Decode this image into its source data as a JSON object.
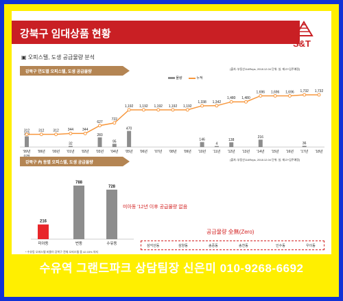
{
  "header": {
    "title": "강북구 임대상품 현황",
    "logo_text": "S&T"
  },
  "subtitle": "▣ 오피스텔, 도생 공급물량 분석",
  "section1": {
    "title": "강북구 연도별 오피스텔, 도생 공급물량",
    "source": "(출처: 부동산114Reps, 2018.12.04 단위: 실, 재고+입주예정)"
  },
  "legend": {
    "bar": "물량",
    "line": "누적"
  },
  "section2": {
    "title": "강북구 內 동별 오피스텔, 도생 공급물량",
    "source": "(출처: 부동산114Reps, 2018.12.04 단위: 실, 재고+입주예정)"
  },
  "annotations": {
    "miadong": "미아동 '12년 이후 공급물량 없음",
    "zero": "공급물량 全無(Zero)",
    "footnote": "* 수유동 오피스텔 비율이 강북구 전체 오피스텔 중 42.03% 차지"
  },
  "zero_dongs": [
    "삼각산동",
    "삼양동",
    "송중동",
    "송천동",
    "인수동",
    "우이동"
  ],
  "colors": {
    "brand_red": "#c91f24",
    "bar_gray": "#8d8d8d",
    "line_orange": "#f7963b",
    "miadong_bar": "#e8262a",
    "banner_bg": "#1133d6",
    "frame_yellow": "#ffef00"
  },
  "banner": "수유역 그랜드파크 상담팀장 신은미 010-9268-6692",
  "chart_data": [
    {
      "type": "bar",
      "title": "강북구 연도별 오피스텔, 도생 공급물량",
      "categories": [
        "'99년 이전",
        "'99년",
        "'00년",
        "'01년",
        "'02년",
        "'03년",
        "'04년",
        "'05년",
        "'06년",
        "'07년",
        "'08년",
        "'09년",
        "'10년",
        "'11년",
        "'12년",
        "'13년",
        "'14년",
        "'15년",
        "'16년",
        "'17년",
        "'18년"
      ],
      "series": [
        {
          "name": "물량",
          "type": "bar",
          "values": [
            312,
            0,
            0,
            32,
            0,
            283,
            95,
            470,
            0,
            0,
            0,
            0,
            146,
            4,
            138,
            0,
            216,
            0,
            0,
            36,
            0
          ]
        },
        {
          "name": "누적",
          "type": "line",
          "values": [
            312,
            312,
            312,
            344,
            344,
            627,
            722,
            1192,
            1192,
            1192,
            1192,
            1192,
            1338,
            1342,
            1480,
            1480,
            1696,
            1696,
            1696,
            1732,
            1732
          ]
        }
      ],
      "bar_labels": [
        "312",
        "",
        "",
        "32",
        "",
        "283",
        "95",
        "470",
        "",
        "",
        "",
        "",
        "146",
        "4",
        "138",
        "",
        "216",
        "",
        "",
        "36",
        ""
      ],
      "line_labels": [
        "312",
        "312",
        "312",
        "344",
        "344",
        "627",
        "722",
        "1,192",
        "1,192",
        "1,192",
        "1,192",
        "1,192",
        "1,338",
        "1,342",
        "1,480",
        "1,480",
        "1,696",
        "1,696",
        "1,696",
        "1,732",
        "1,732"
      ]
    },
    {
      "type": "bar",
      "title": "강북구 內 동별 오피스텔, 도생 공급물량",
      "categories": [
        "미아동",
        "번동",
        "수유동"
      ],
      "values": [
        216,
        788,
        728
      ],
      "labels": [
        "216",
        "788",
        "728"
      ]
    }
  ]
}
